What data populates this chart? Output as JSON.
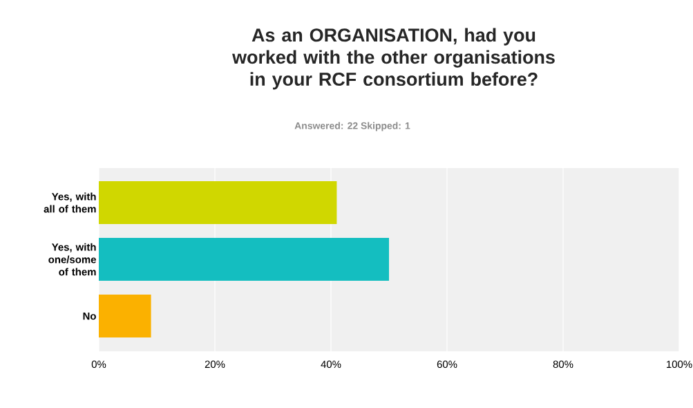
{
  "chart_data": {
    "type": "bar",
    "orientation": "horizontal",
    "title": "As an ORGANISATION, had you worked with the other organisations in your RCF consortium before?",
    "subtitle": "Answered: 22    Skipped: 1",
    "categories": [
      "Yes, with all of them",
      "Yes, with one/some of them",
      "No"
    ],
    "values": [
      41,
      50,
      9
    ],
    "colors": [
      "#d0d700",
      "#14bec0",
      "#fbb100"
    ],
    "xlim": [
      0,
      100
    ],
    "xticks": [
      {
        "value": 0,
        "label": "0%"
      },
      {
        "value": 20,
        "label": "20%"
      },
      {
        "value": 40,
        "label": "40%"
      },
      {
        "value": 60,
        "label": "60%"
      },
      {
        "value": 80,
        "label": "80%"
      },
      {
        "value": 100,
        "label": "100%"
      }
    ],
    "grid": "x"
  }
}
